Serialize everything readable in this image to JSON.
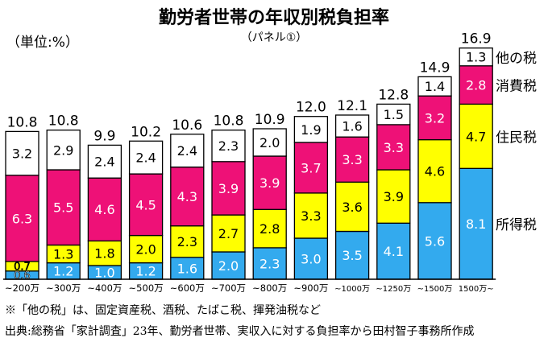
{
  "chart_data": {
    "type": "bar",
    "stacked": true,
    "title": "勤労者世帯の年収別税負担率",
    "subtitle": "（パネル①）",
    "unit_label": "（単位:%）",
    "categories": [
      "~200万",
      "~300万",
      "~400万",
      "~500万",
      "~600万",
      "~700万",
      "~800万",
      "~900万",
      "~1000万",
      "~1250万",
      "~1500万",
      "1500万~"
    ],
    "totals": [
      "10.8",
      "10.8",
      "9.9",
      "10.2",
      "10.6",
      "10.8",
      "10.9",
      "12.0",
      "12.1",
      "12.8",
      "14.9",
      "16.9"
    ],
    "series": [
      {
        "name": "所得税",
        "color": "#33aaee",
        "label_color": "#ffffff",
        "values": [
          0.6,
          1.2,
          1.0,
          1.2,
          1.6,
          2.0,
          2.3,
          3.0,
          3.5,
          4.1,
          5.6,
          8.1
        ]
      },
      {
        "name": "住民税",
        "color": "#ffff00",
        "label_color": "#000000",
        "values": [
          0.7,
          1.3,
          1.8,
          2.0,
          2.3,
          2.7,
          2.8,
          3.3,
          3.6,
          3.9,
          4.6,
          4.7
        ]
      },
      {
        "name": "消費税",
        "color": "#ee1177",
        "label_color": "#ffffff",
        "values": [
          6.3,
          5.5,
          4.6,
          4.5,
          4.3,
          3.9,
          3.9,
          3.7,
          3.3,
          3.3,
          3.2,
          2.8
        ]
      },
      {
        "name": "他の税",
        "color": "#ffffff",
        "label_color": "#000000",
        "values": [
          3.2,
          2.9,
          2.4,
          2.4,
          2.4,
          2.3,
          2.0,
          1.9,
          1.6,
          1.5,
          1.4,
          1.3
        ]
      }
    ],
    "legend_placement": "right",
    "grid": false
  },
  "notes": [
    "※「他の税」は、固定資産税、酒税、たばこ税、揮発油税など",
    "出典:総務省「家計調査」23年、勤労者世帯、実収入に対する負担率から田村智子事務所作成"
  ]
}
